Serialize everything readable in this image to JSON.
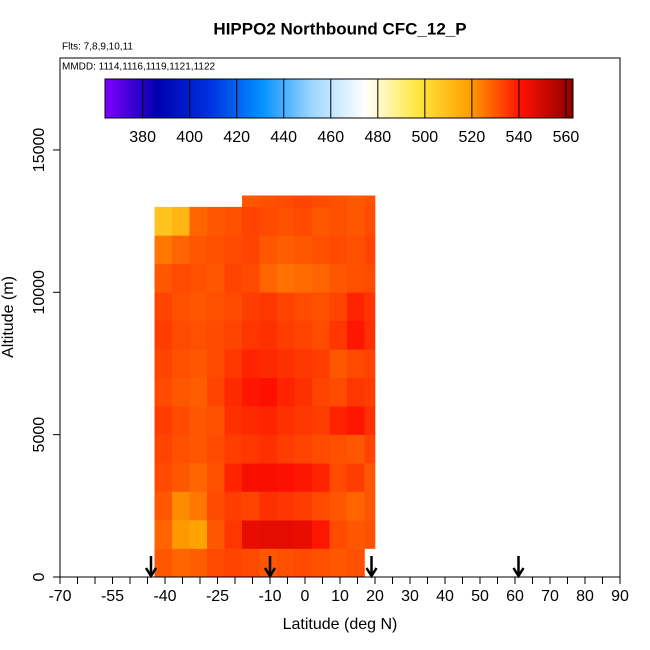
{
  "chart_data": {
    "type": "heatmap",
    "title": "HIPPO2 Northbound CFC_12_P",
    "flights_note": "Flts: 7,8,9,10,11",
    "dates_note": "MMDD: 1114,1116,1119,1121,1122",
    "xlabel": "Latitude (deg N)",
    "ylabel": "Altitude (m)",
    "xlim": [
      -70,
      90
    ],
    "ylim": [
      0,
      18230
    ],
    "xticks": [
      -70,
      -55,
      -40,
      -25,
      -10,
      0,
      10,
      20,
      30,
      40,
      50,
      60,
      70,
      80,
      90
    ],
    "xminorticks": [
      -65,
      -60,
      -50,
      -45,
      -35,
      -30,
      -20,
      -15,
      -5,
      5,
      15,
      25,
      35,
      45,
      55,
      65,
      75,
      85
    ],
    "yticks": [
      0,
      5000,
      10000,
      15000
    ],
    "arrows": [
      -44,
      -10,
      19,
      61
    ],
    "clim": [
      364,
      563
    ],
    "cbar_ticks": [
      380,
      400,
      420,
      440,
      460,
      480,
      500,
      520,
      540,
      560
    ],
    "colormap": [
      "#7f00ff",
      "#0000b0",
      "#0030e0",
      "#0090ff",
      "#a0d8ff",
      "#ffffff",
      "#ffe840",
      "#ffa000",
      "#ff1000",
      "#8b0000"
    ],
    "x_edges": [
      -43,
      -38,
      -33,
      -28,
      -23,
      -18,
      -13,
      -8,
      -3,
      2,
      7,
      12,
      17,
      20
    ],
    "y_edges": [
      0,
      1000,
      2000,
      3000,
      4000,
      5000,
      6000,
      7000,
      8000,
      9000,
      10000,
      11000,
      12000,
      13000,
      13400
    ],
    "z": [
      [
        530,
        528,
        529,
        532,
        533,
        532,
        530,
        531,
        532,
        531,
        530,
        531,
        null
      ],
      [
        528,
        520,
        518,
        530,
        535,
        545,
        546,
        546,
        545,
        540,
        532,
        530,
        531
      ],
      [
        530,
        522,
        525,
        532,
        534,
        533,
        536,
        535,
        534,
        532,
        530,
        528,
        530
      ],
      [
        532,
        530,
        528,
        531,
        538,
        542,
        542,
        541,
        540,
        538,
        532,
        534,
        530
      ],
      [
        533,
        531,
        530,
        532,
        534,
        535,
        536,
        534,
        533,
        532,
        531,
        530,
        533
      ],
      [
        534,
        532,
        530,
        531,
        536,
        537,
        538,
        536,
        535,
        534,
        538,
        540,
        536
      ],
      [
        532,
        530,
        529,
        533,
        537,
        540,
        541,
        538,
        536,
        533,
        532,
        535,
        534
      ],
      [
        533,
        531,
        530,
        532,
        535,
        538,
        537,
        536,
        535,
        534,
        530,
        532,
        533
      ],
      [
        534,
        532,
        531,
        532,
        533,
        535,
        536,
        534,
        533,
        532,
        535,
        540,
        536
      ],
      [
        533,
        531,
        530,
        531,
        532,
        534,
        535,
        533,
        532,
        531,
        533,
        538,
        535
      ],
      [
        530,
        532,
        531,
        530,
        533,
        532,
        528,
        526,
        527,
        528,
        530,
        531,
        532
      ],
      [
        525,
        528,
        530,
        531,
        532,
        533,
        530,
        529,
        530,
        531,
        532,
        531,
        533
      ],
      [
        508,
        512,
        528,
        530,
        531,
        533,
        532,
        531,
        532,
        530,
        531,
        530,
        532
      ],
      [
        null,
        null,
        null,
        null,
        null,
        530,
        531,
        532,
        533,
        532,
        531,
        530,
        531
      ]
    ]
  }
}
